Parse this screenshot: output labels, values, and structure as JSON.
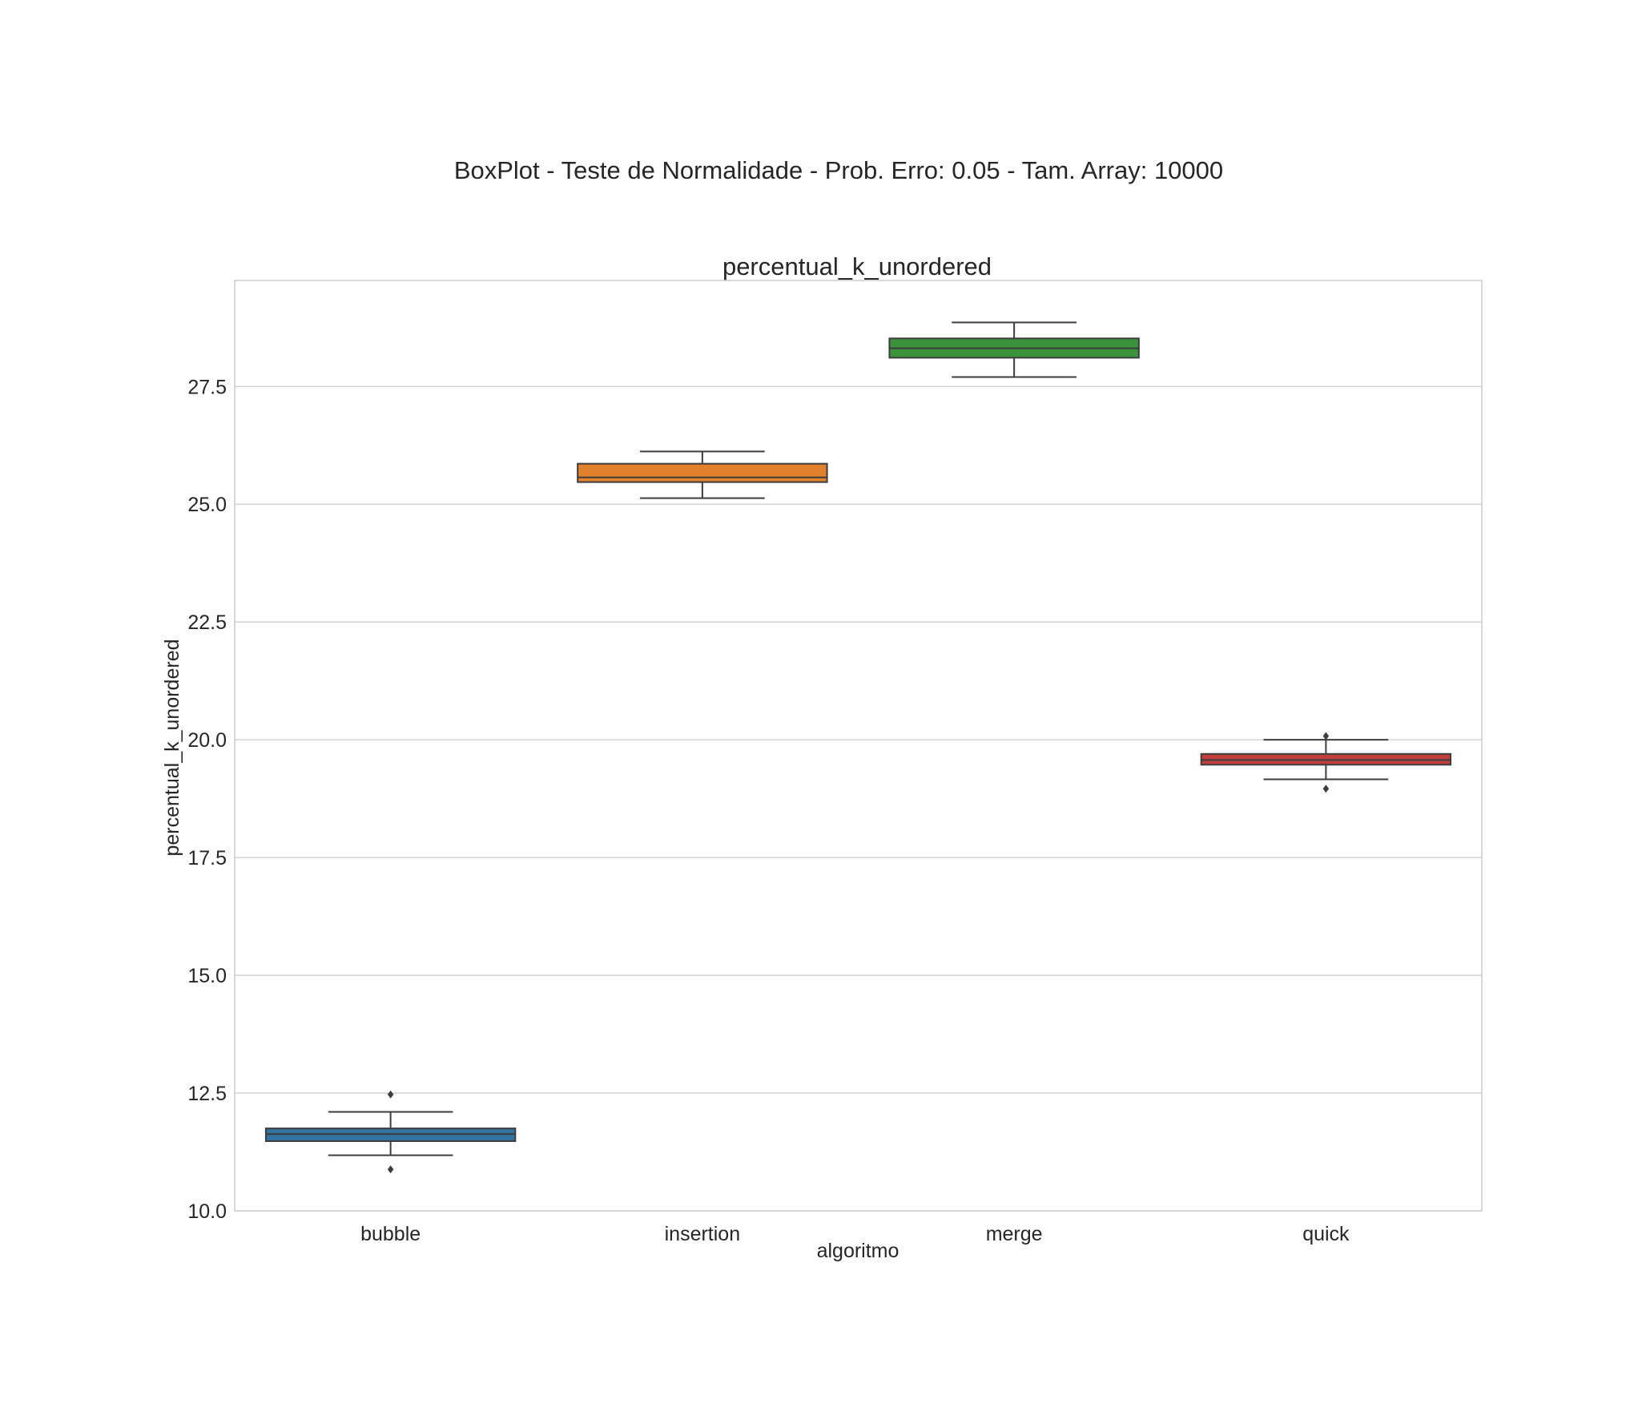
{
  "chart_data": {
    "type": "box",
    "title": "BoxPlot - Teste de Normalidade - Prob. Erro: 0.05 - Tam. Array: 10000",
    "subtitle": "percentual_k_unordered",
    "xlabel": "algoritmo",
    "ylabel": "percentual_k_unordered",
    "ylim": [
      10.0,
      29.75
    ],
    "yticks": [
      "10.0",
      "12.5",
      "15.0",
      "17.5",
      "20.0",
      "22.5",
      "25.0",
      "27.5"
    ],
    "grid": true,
    "categories": [
      "bubble",
      "insertion",
      "merge",
      "quick"
    ],
    "boxes": [
      {
        "category": "bubble",
        "color": "#3274a1",
        "whisker_low": 11.18,
        "q1": 11.48,
        "median": 11.63,
        "q3": 11.75,
        "whisker_high": 12.1,
        "outliers": [
          10.88,
          12.47
        ]
      },
      {
        "category": "insertion",
        "color": "#e1812c",
        "whisker_low": 25.13,
        "q1": 25.47,
        "median": 25.57,
        "q3": 25.86,
        "whisker_high": 26.12,
        "outliers": []
      },
      {
        "category": "merge",
        "color": "#3a923a",
        "whisker_low": 27.7,
        "q1": 28.11,
        "median": 28.31,
        "q3": 28.52,
        "whisker_high": 28.86,
        "outliers": []
      },
      {
        "category": "quick",
        "color": "#c03d3e",
        "whisker_low": 19.16,
        "q1": 19.47,
        "median": 19.57,
        "q3": 19.7,
        "whisker_high": 20.0,
        "outliers": [
          18.96,
          20.08
        ]
      }
    ]
  }
}
